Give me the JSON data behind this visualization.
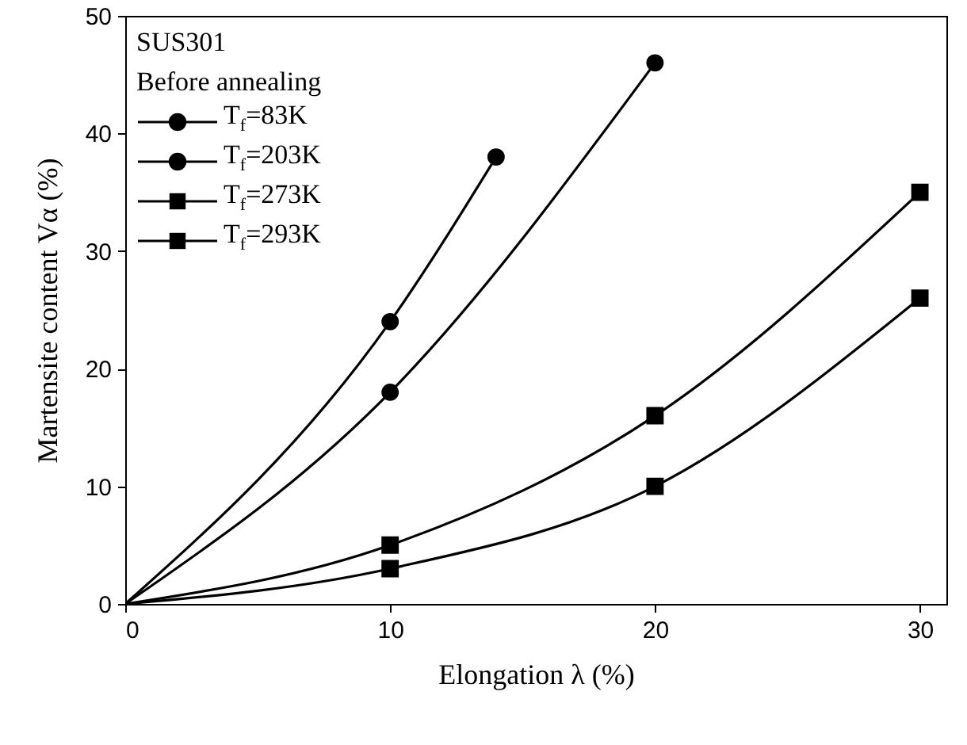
{
  "chart_data": {
    "type": "line",
    "xlabel": "Elongation  λ (%)",
    "ylabel": "Martensite content    Vα (%)",
    "annotations": [
      "SUS301",
      "Before annealing"
    ],
    "xlim": [
      0,
      31
    ],
    "xticks": [
      0,
      10,
      20,
      30
    ],
    "ylim": [
      0,
      50
    ],
    "yticks": [
      0,
      10,
      20,
      30,
      40,
      50
    ],
    "grid": false,
    "legend": "top left",
    "line_style": "solid",
    "series": [
      {
        "name": "T$_{f}$=83K",
        "color": "#000000",
        "marker": "circle",
        "x": [
          0,
          10,
          14
        ],
        "values": [
          0,
          24,
          38
        ]
      },
      {
        "name": "T$_{f}$=203K",
        "color": "#000000",
        "marker": "circle",
        "x": [
          0,
          10,
          20
        ],
        "values": [
          0,
          18,
          46
        ]
      },
      {
        "name": "T$_{f}$=273K",
        "color": "#000000",
        "marker": "square",
        "x": [
          0,
          10,
          20,
          30
        ],
        "values": [
          0,
          5,
          16,
          35
        ]
      },
      {
        "name": "T$_{f}$=293K",
        "color": "#000000",
        "marker": "square",
        "x": [
          0,
          10,
          20,
          30
        ],
        "values": [
          0,
          3,
          10,
          26
        ]
      }
    ]
  }
}
